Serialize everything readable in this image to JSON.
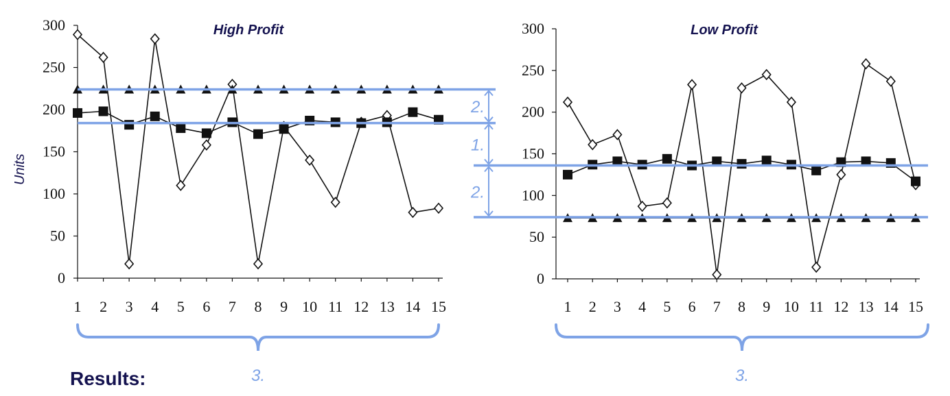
{
  "colors": {
    "annotation": "#7ea3e6",
    "title": "#14124f",
    "data": "#111111"
  },
  "results_label": "Results:",
  "y_axis_label": "Units",
  "annotations": {
    "band_a": "2.",
    "band_b": "1.",
    "band_c": "2.",
    "bracket_left": "3.",
    "bracket_right": "3."
  },
  "chart_data": [
    {
      "type": "line",
      "title": "High Profit",
      "ylabel": "Units",
      "ylim": [
        0,
        300
      ],
      "yticks": [
        0,
        50,
        100,
        150,
        200,
        250,
        300
      ],
      "x": [
        1,
        2,
        3,
        4,
        5,
        6,
        7,
        8,
        9,
        10,
        11,
        12,
        13,
        14,
        15
      ],
      "series": [
        {
          "marker": "diamond-open",
          "values": [
            289,
            262,
            17,
            284,
            110,
            158,
            230,
            17,
            180,
            140,
            90,
            185,
            193,
            78,
            83
          ]
        },
        {
          "marker": "triangle",
          "values": [
            224,
            224,
            224,
            224,
            224,
            224,
            224,
            224,
            224,
            224,
            224,
            224,
            224,
            224,
            224
          ]
        },
        {
          "marker": "square",
          "values": [
            196,
            198,
            182,
            192,
            178,
            172,
            185,
            171,
            177,
            187,
            185,
            184,
            185,
            197,
            188
          ]
        }
      ],
      "reference_lines": [
        224,
        184
      ]
    },
    {
      "type": "line",
      "title": "Low Profit",
      "ylim": [
        0,
        300
      ],
      "yticks": [
        0,
        50,
        100,
        150,
        200,
        250,
        300
      ],
      "x": [
        1,
        2,
        3,
        4,
        5,
        6,
        7,
        8,
        9,
        10,
        11,
        12,
        13,
        14,
        15
      ],
      "series": [
        {
          "marker": "diamond-open",
          "values": [
            212,
            161,
            173,
            87,
            91,
            233,
            5,
            229,
            245,
            212,
            14,
            125,
            258,
            237,
            113
          ]
        },
        {
          "marker": "triangle",
          "values": [
            73,
            73,
            73,
            73,
            73,
            73,
            73,
            73,
            73,
            73,
            73,
            73,
            73,
            73,
            73
          ]
        },
        {
          "marker": "square",
          "values": [
            125,
            137,
            141,
            137,
            144,
            136,
            141,
            138,
            142,
            137,
            130,
            140,
            141,
            139,
            117
          ]
        }
      ],
      "reference_lines": [
        136,
        74
      ]
    }
  ]
}
